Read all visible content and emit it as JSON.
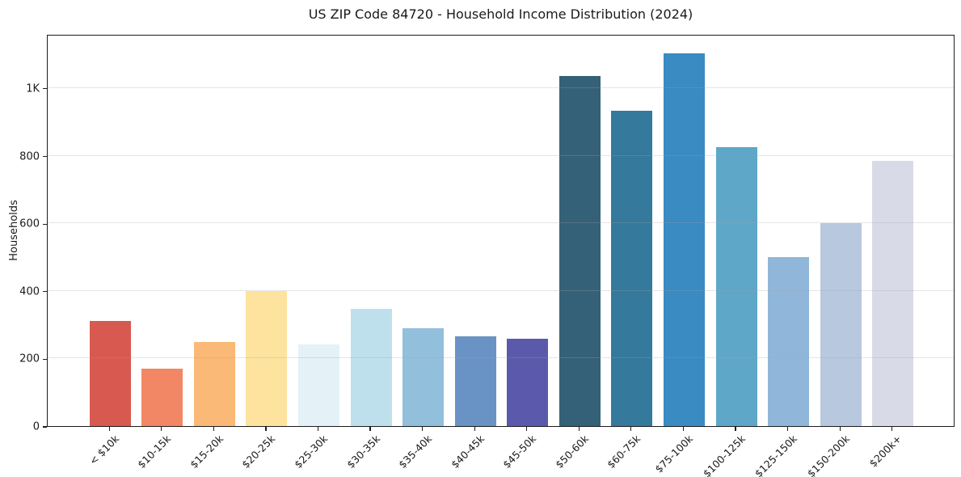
{
  "chart_data": {
    "type": "bar",
    "title": "US ZIP Code 84720 - Household Income Distribution (2024)",
    "xlabel": "",
    "ylabel": "Households",
    "categories": [
      "< $10k",
      "$10-15k",
      "$15-20k",
      "$20-25k",
      "$25-30k",
      "$30-35k",
      "$35-40k",
      "$40-45k",
      "$45-50k",
      "$50-60k",
      "$60-75k",
      "$75-100k",
      "$100-125k",
      "$125-150k",
      "$150-200k",
      "$200k+"
    ],
    "values": [
      310,
      170,
      248,
      400,
      242,
      348,
      290,
      266,
      258,
      1035,
      933,
      1103,
      825,
      500,
      600,
      785
    ],
    "bar_colors": [
      "#d75950",
      "#f28765",
      "#fab976",
      "#fde39e",
      "#e4f1f7",
      "#bee0ed",
      "#92bfdc",
      "#6a93c5",
      "#5b59ab",
      "#356178",
      "#35799c",
      "#398bc1",
      "#5fa7c8",
      "#90b7d9",
      "#b8c8df",
      "#d8dae7"
    ],
    "yticks": [
      {
        "value": 0,
        "label": "0"
      },
      {
        "value": 200,
        "label": "200"
      },
      {
        "value": 400,
        "label": "400"
      },
      {
        "value": 600,
        "label": "600"
      },
      {
        "value": 800,
        "label": "800"
      },
      {
        "value": 1000,
        "label": "1K"
      }
    ],
    "ylim": [
      0,
      1160
    ],
    "grid": "horizontal",
    "legend": "none",
    "xtick_rotation": 45
  }
}
